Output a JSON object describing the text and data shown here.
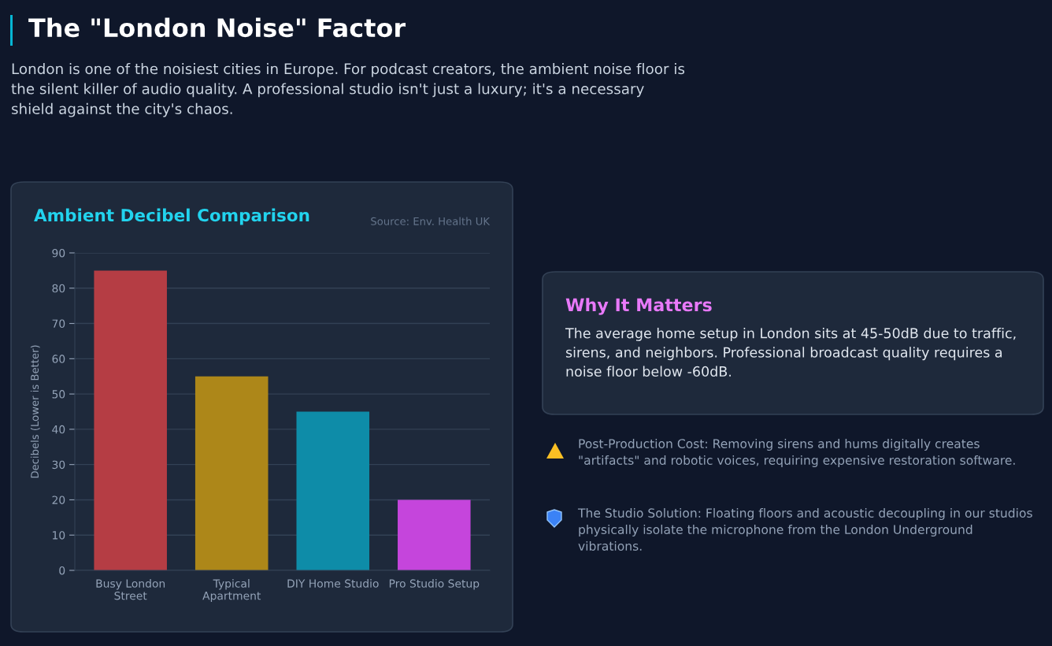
{
  "chart_data": [
    {
      "type": "other",
      "title": "The \"London Noise\" Factor",
      "annotations": [
        "London is one of the noisiest cities in Europe. For podcast creators, the ambient noise floor is the silent killer of audio quality. A professional studio isn't just a luxury; it's a necessary shield against the city's chaos."
      ]
    },
    {
      "type": "bar",
      "title": "Ambient Decibel Comparison",
      "annotations": [
        "Source: Env. Health UK"
      ],
      "ylabel": "Decibels (Lower is Better)",
      "categories": [
        "Busy London\nStreet",
        "Typical\nApartment",
        "DIY Home Studio",
        "Pro Studio Setup"
      ],
      "values": [
        85,
        55,
        45,
        20
      ],
      "colors": [
        "#b53d44",
        "#ad8719",
        "#0e8ca8",
        "#c545dc"
      ],
      "ylim": [
        0,
        90
      ],
      "yticks": [
        0,
        10,
        20,
        30,
        40,
        50,
        60,
        70,
        80,
        90
      ],
      "grid": "y"
    },
    {
      "type": "other",
      "title": "Why It Matters",
      "annotations": [
        "The average home setup in London sits at 45-50dB due to traffic, sirens, and neighbors. Professional broadcast quality requires a noise floor below -60dB.",
        "Post-Production Cost: Removing sirens and hums digitally creates \"artifacts\" and robotic voices, requiring expensive restoration software.",
        "The Studio Solution: Floating floors and acoustic decoupling in our studios physically isolate the microphone from the London Underground vibrations."
      ]
    }
  ]
}
